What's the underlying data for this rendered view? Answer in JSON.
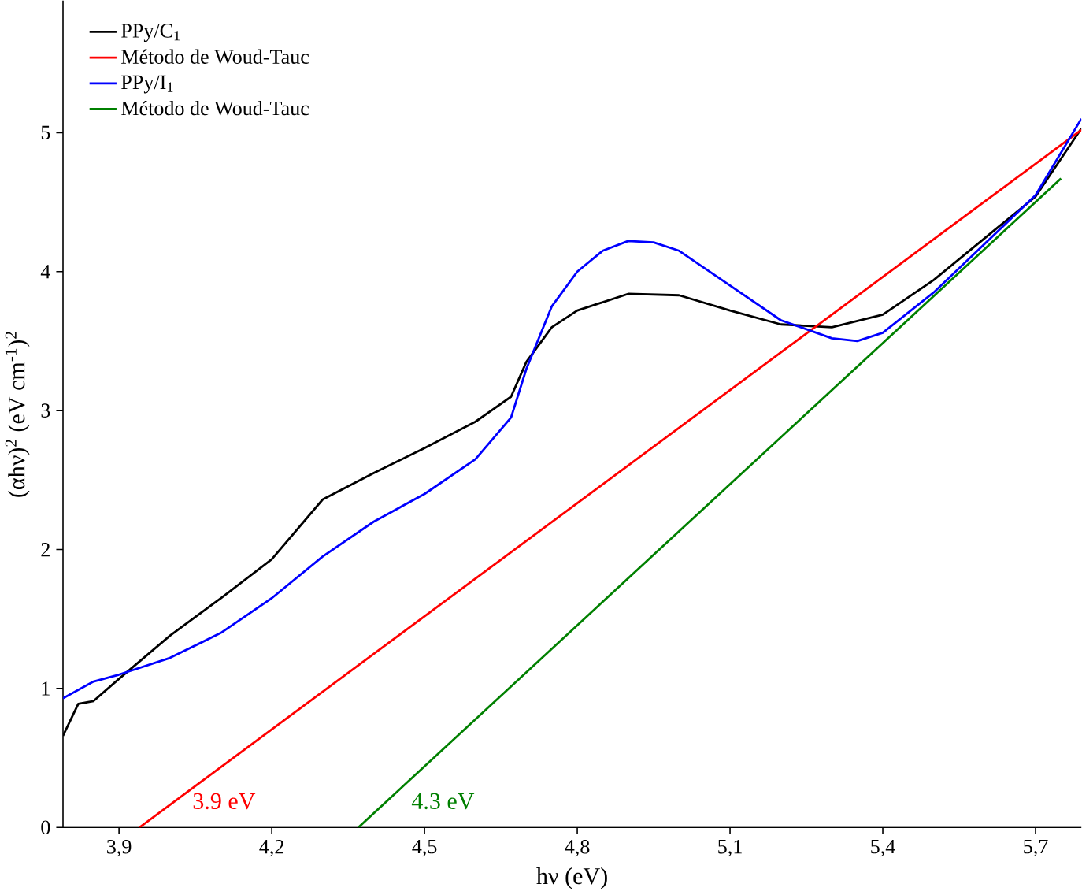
{
  "chart_data": {
    "type": "line",
    "xlabel": "hν (eV)",
    "ylabel": "(αhν)$^{2}$ (eV cm$^{-1}$)$^{2}$",
    "xlim": [
      3.79,
      5.79
    ],
    "ylim": [
      0,
      5.95
    ],
    "xticks": [
      {
        "value": 3.9,
        "label": "3,9"
      },
      {
        "value": 4.2,
        "label": "4,2"
      },
      {
        "value": 4.5,
        "label": "4,5"
      },
      {
        "value": 4.8,
        "label": "4,8"
      },
      {
        "value": 5.1,
        "label": "5,1"
      },
      {
        "value": 5.4,
        "label": "5,4"
      },
      {
        "value": 5.7,
        "label": "5,7"
      }
    ],
    "yticks": [
      0,
      1,
      2,
      3,
      4,
      5
    ],
    "legend": "top left",
    "grid": false,
    "marker": "none",
    "line_style": "solid",
    "series": [
      {
        "name": "PPy/C$_{1}$",
        "color": "#000000",
        "x": [
          3.79,
          3.82,
          3.85,
          3.9,
          4.0,
          4.1,
          4.2,
          4.3,
          4.4,
          4.5,
          4.6,
          4.67,
          4.7,
          4.75,
          4.8,
          4.9,
          5.0,
          5.1,
          5.2,
          5.3,
          5.4,
          5.5,
          5.6,
          5.7,
          5.79
        ],
        "values": [
          0.66,
          0.89,
          0.91,
          1.07,
          1.38,
          1.65,
          1.93,
          2.36,
          2.55,
          2.73,
          2.92,
          3.1,
          3.35,
          3.6,
          3.72,
          3.84,
          3.83,
          3.72,
          3.62,
          3.6,
          3.69,
          3.94,
          4.24,
          4.54,
          5.03
        ]
      },
      {
        "name": "Método de Woud-Tauc",
        "color": "#ff0000",
        "x": [
          3.94,
          5.79
        ],
        "values": [
          0,
          5.02
        ]
      },
      {
        "name": "PPy/I$_{1}$",
        "color": "#0000ff",
        "x": [
          3.79,
          3.85,
          3.9,
          4.0,
          4.1,
          4.2,
          4.3,
          4.4,
          4.5,
          4.6,
          4.67,
          4.7,
          4.75,
          4.8,
          4.85,
          4.9,
          4.95,
          5.0,
          5.1,
          5.2,
          5.3,
          5.35,
          5.4,
          5.5,
          5.6,
          5.7,
          5.79
        ],
        "values": [
          0.93,
          1.05,
          1.1,
          1.22,
          1.4,
          1.65,
          1.95,
          2.2,
          2.4,
          2.65,
          2.95,
          3.3,
          3.75,
          4.0,
          4.15,
          4.22,
          4.21,
          4.15,
          3.9,
          3.65,
          3.52,
          3.5,
          3.56,
          3.85,
          4.2,
          4.55,
          5.1
        ]
      },
      {
        "name": "Método de Woud-Tauc",
        "color": "#008000",
        "x": [
          4.37,
          5.75
        ],
        "values": [
          0,
          4.67
        ]
      }
    ],
    "annotations": [
      {
        "text": "3.9 eV",
        "x": 3.94,
        "y": 0
      },
      {
        "text": "4.3 eV",
        "x": 4.37,
        "y": 0
      }
    ]
  }
}
